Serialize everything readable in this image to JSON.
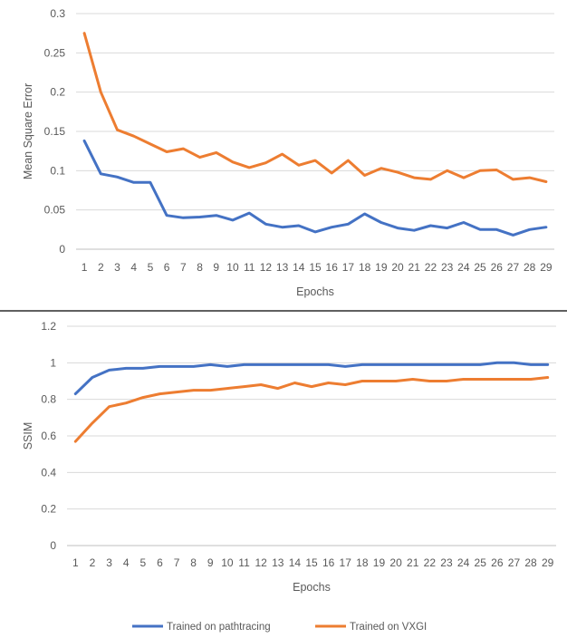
{
  "chart_data": [
    {
      "type": "line",
      "title": "",
      "xlabel": "Epochs",
      "ylabel": "Mean Square Error",
      "ylim": [
        0,
        0.3
      ],
      "yticks": [
        "0",
        "0.05",
        "0.1",
        "0.15",
        "0.2",
        "0.25",
        "0.3"
      ],
      "grid": true,
      "categories": [
        "1",
        "2",
        "3",
        "4",
        "5",
        "6",
        "7",
        "8",
        "9",
        "10",
        "11",
        "12",
        "13",
        "14",
        "15",
        "16",
        "17",
        "18",
        "19",
        "20",
        "21",
        "22",
        "23",
        "24",
        "25",
        "26",
        "27",
        "28",
        "29"
      ],
      "series": [
        {
          "name": "Trained on pathtracing",
          "color": "#4472C4",
          "values": [
            0.138,
            0.096,
            0.092,
            0.085,
            0.085,
            0.043,
            0.04,
            0.041,
            0.043,
            0.037,
            0.046,
            0.032,
            0.028,
            0.03,
            0.022,
            0.028,
            0.032,
            0.045,
            0.034,
            0.027,
            0.024,
            0.03,
            0.027,
            0.034,
            0.025,
            0.025,
            0.018,
            0.025,
            0.028
          ]
        },
        {
          "name": "Trained on VXGI",
          "color": "#ED7D31",
          "values": [
            0.275,
            0.2,
            0.152,
            0.144,
            0.134,
            0.124,
            0.128,
            0.117,
            0.123,
            0.111,
            0.104,
            0.11,
            0.121,
            0.107,
            0.113,
            0.097,
            0.113,
            0.094,
            0.103,
            0.098,
            0.091,
            0.089,
            0.1,
            0.091,
            0.1,
            0.101,
            0.089,
            0.091,
            0.086
          ]
        }
      ]
    },
    {
      "type": "line",
      "title": "",
      "xlabel": "Epochs",
      "ylabel": "SSIM",
      "ylim": [
        0,
        1.2
      ],
      "yticks": [
        "0",
        "0.2",
        "0.4",
        "0.6",
        "0.8",
        "1",
        "1.2"
      ],
      "grid": true,
      "categories": [
        "1",
        "2",
        "3",
        "4",
        "5",
        "6",
        "7",
        "8",
        "9",
        "10",
        "11",
        "12",
        "13",
        "14",
        "15",
        "16",
        "17",
        "18",
        "19",
        "20",
        "21",
        "22",
        "23",
        "24",
        "25",
        "26",
        "27",
        "28",
        "29"
      ],
      "series": [
        {
          "name": "Trained on pathtracing",
          "color": "#4472C4",
          "values": [
            0.83,
            0.92,
            0.96,
            0.97,
            0.97,
            0.98,
            0.98,
            0.98,
            0.99,
            0.98,
            0.99,
            0.99,
            0.99,
            0.99,
            0.99,
            0.99,
            0.98,
            0.99,
            0.99,
            0.99,
            0.99,
            0.99,
            0.99,
            0.99,
            0.99,
            1.0,
            1.0,
            0.99,
            0.99
          ]
        },
        {
          "name": "Trained on VXGI",
          "color": "#ED7D31",
          "values": [
            0.57,
            0.67,
            0.76,
            0.78,
            0.81,
            0.83,
            0.84,
            0.85,
            0.85,
            0.86,
            0.87,
            0.88,
            0.86,
            0.89,
            0.87,
            0.89,
            0.88,
            0.9,
            0.9,
            0.9,
            0.91,
            0.9,
            0.9,
            0.91,
            0.91,
            0.91,
            0.91,
            0.91,
            0.92
          ]
        }
      ]
    }
  ],
  "legend": {
    "items": [
      {
        "label": "Trained on pathtracing",
        "color": "#4472C4"
      },
      {
        "label": "Trained on VXGI",
        "color": "#ED7D31"
      }
    ]
  },
  "divider_color": "#000000"
}
